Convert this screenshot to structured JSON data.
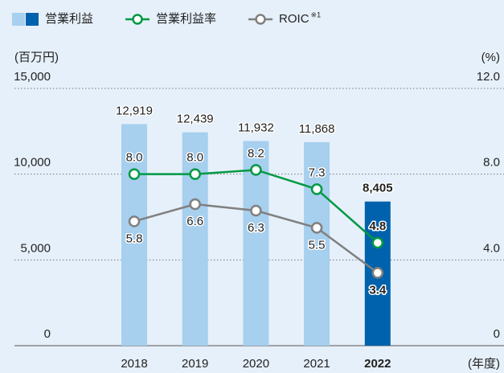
{
  "chart_data": {
    "type": "bar",
    "categories": [
      "2018",
      "2019",
      "2020",
      "2021",
      "2022"
    ],
    "series": [
      {
        "name": "営業利益",
        "type": "bar",
        "colors": [
          "#a7cfee",
          "#a7cfee",
          "#a7cfee",
          "#a7cfee",
          "#0062ad"
        ],
        "values": [
          12919,
          12439,
          11932,
          11868,
          8405
        ],
        "value_labels": [
          "12,919",
          "12,439",
          "11,932",
          "11,868",
          "8,405"
        ]
      },
      {
        "name": "営業利益率",
        "type": "line",
        "axis": "y2",
        "color": "#009944",
        "label_position": "above",
        "values": [
          8.0,
          8.0,
          8.2,
          7.3,
          4.8
        ],
        "value_labels": [
          "8.0",
          "8.0",
          "8.2",
          "7.3",
          "4.8"
        ]
      },
      {
        "name": "ROIC",
        "note": "※1",
        "type": "line",
        "axis": "y2",
        "color": "#808080",
        "label_position": "below",
        "values": [
          5.8,
          6.6,
          6.3,
          5.5,
          3.4
        ],
        "value_labels": [
          "5.8",
          "6.6",
          "6.3",
          "5.5",
          "3.4"
        ]
      }
    ],
    "ylabel": "(百万円)",
    "y2label": "(%)",
    "xlabel": "(年度)",
    "ylim": [
      0,
      15000
    ],
    "yticks": [
      0,
      {
        "value": 5000,
        "label": "5,000"
      },
      {
        "value": 10000,
        "label": "10,000"
      },
      {
        "value": 15000,
        "label": "15,000"
      }
    ],
    "y2lim": [
      0,
      12
    ],
    "y2ticks": [
      0,
      {
        "value": 4,
        "label": "4.0"
      },
      {
        "value": 8,
        "label": "8.0"
      },
      {
        "value": 12,
        "label": "12.0"
      }
    ],
    "grid": true
  }
}
